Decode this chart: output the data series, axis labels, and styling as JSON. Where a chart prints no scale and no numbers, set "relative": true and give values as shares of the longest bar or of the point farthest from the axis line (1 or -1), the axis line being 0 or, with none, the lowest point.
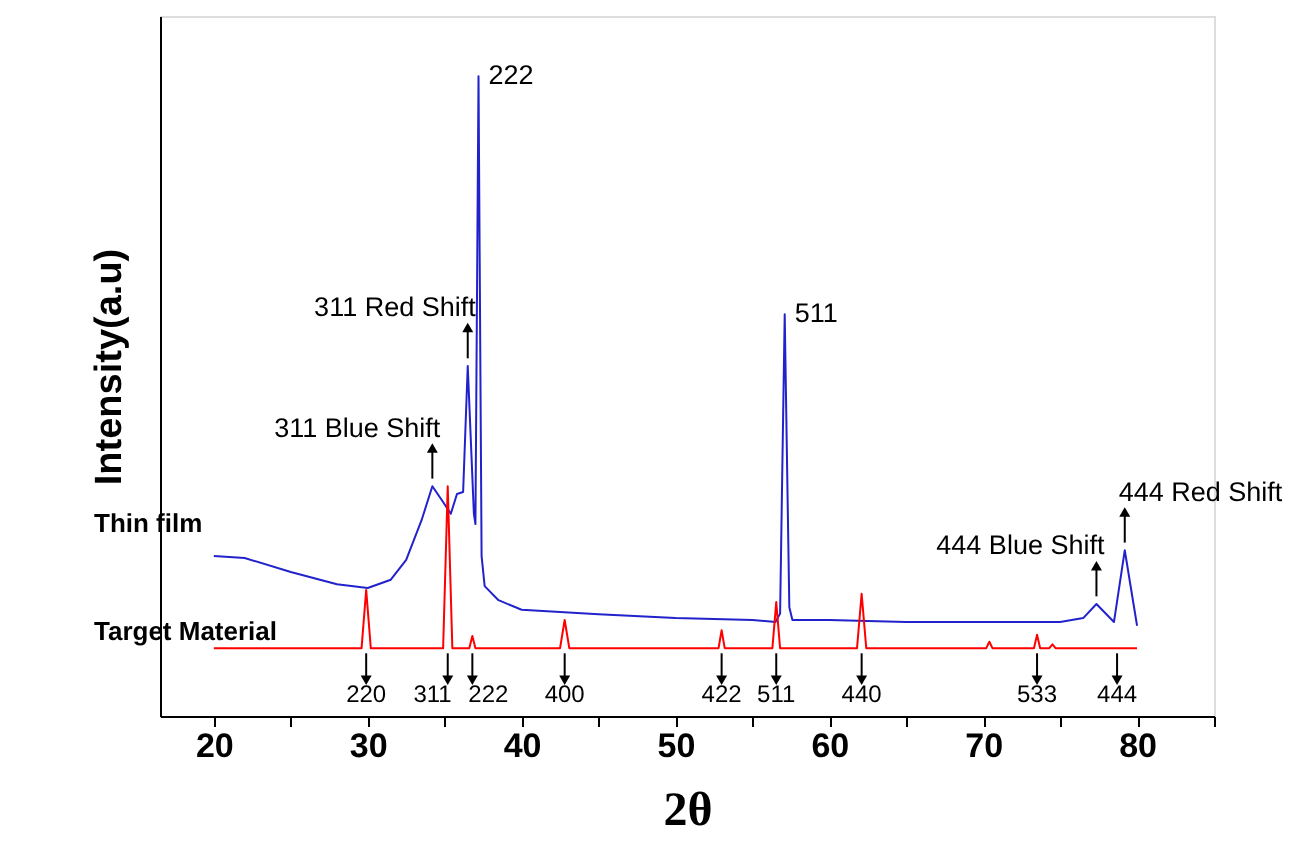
{
  "chart_data": {
    "type": "line",
    "relative": true,
    "xlabel": "2θ",
    "ylabel": "Intensity(a.u)",
    "xlim": [
      16.5,
      85
    ],
    "xticks": [
      20,
      {
        "value": 25,
        "label": null
      },
      30,
      {
        "value": 35,
        "label": null
      },
      40,
      {
        "value": 45,
        "label": null
      },
      50,
      {
        "value": 55,
        "label": null
      },
      60,
      {
        "value": 65,
        "label": null
      },
      70,
      {
        "value": 75,
        "label": null
      },
      80,
      {
        "value": 85,
        "label": null
      }
    ],
    "grid": false,
    "legend": false,
    "marker": "none",
    "line_style": "solid",
    "series": [
      {
        "name": "Thin film",
        "color": "#2222cc",
        "x": [
          20,
          22,
          25,
          28,
          30,
          31.5,
          32.5,
          33.5,
          34.2,
          34.8,
          35.4,
          35.8,
          36.2,
          36.5,
          36.9,
          37.0,
          37.2,
          37.4,
          37.6,
          38.5,
          40,
          45,
          50,
          55,
          56.5,
          56.8,
          57.1,
          57.4,
          57.6,
          60,
          65,
          70,
          75,
          76.5,
          77.36,
          78.5,
          79.2,
          80
        ],
        "values": [
          0.25,
          0.247,
          0.225,
          0.206,
          0.2,
          0.213,
          0.244,
          0.306,
          0.359,
          0.338,
          0.316,
          0.347,
          0.35,
          0.547,
          0.316,
          0.3,
          1,
          0.25,
          0.203,
          0.181,
          0.166,
          0.159,
          0.153,
          0.15,
          0.147,
          0.16,
          0.628,
          0.17,
          0.15,
          0.15,
          0.147,
          0.147,
          0.147,
          0.153,
          0.175,
          0.147,
          0.259,
          0.141
        ]
      },
      {
        "name": "Target Material",
        "color": "#ff0000",
        "x": [
          20,
          29.6,
          29.9,
          30.2,
          34.9,
          35.2,
          35.5,
          36.6,
          36.8,
          37.0,
          42.5,
          42.8,
          43.1,
          52.8,
          53.0,
          53.2,
          56.3,
          56.55,
          56.8,
          61.8,
          62.1,
          62.4,
          70.2,
          70.4,
          70.6,
          73.3,
          73.5,
          73.7,
          74.3,
          74.5,
          74.7,
          80
        ],
        "values": [
          0.106,
          0.106,
          0.197,
          0.106,
          0.106,
          0.359,
          0.106,
          0.106,
          0.125,
          0.106,
          0.106,
          0.15,
          0.106,
          0.106,
          0.134,
          0.106,
          0.106,
          0.178,
          0.106,
          0.106,
          0.191,
          0.106,
          0.106,
          0.116,
          0.106,
          0.106,
          0.127,
          0.106,
          0.106,
          0.112,
          0.106,
          0.106
        ]
      }
    ],
    "annotations": [
      {
        "text": "222",
        "x": 37.2,
        "y": 1
      },
      {
        "text": "511",
        "x": 57.1,
        "y": 0.628
      },
      {
        "text": "311 Red Shift",
        "x": 36.5,
        "y": 0.547
      },
      {
        "text": "311 Blue Shift",
        "x": 34.2,
        "y": 0.359
      },
      {
        "text": "444 Blue Shift",
        "x": 77.36,
        "y": 0.175
      },
      {
        "text": "444 Red Shift",
        "x": 79.2,
        "y": 0.259
      },
      {
        "text": "220",
        "x": 29.9,
        "y": 0.106
      },
      {
        "text": "311",
        "x": 35.2,
        "y": 0.106
      },
      {
        "text": "222",
        "x": 36.8,
        "y": 0.106
      },
      {
        "text": "400",
        "x": 42.8,
        "y": 0.106
      },
      {
        "text": "422",
        "x": 53.0,
        "y": 0.106
      },
      {
        "text": "511",
        "x": 56.55,
        "y": 0.106
      },
      {
        "text": "440",
        "x": 62.1,
        "y": 0.106
      },
      {
        "text": "533",
        "x": 73.5,
        "y": 0.106
      },
      {
        "text": "444",
        "x": 78.7,
        "y": 0.106
      }
    ]
  }
}
